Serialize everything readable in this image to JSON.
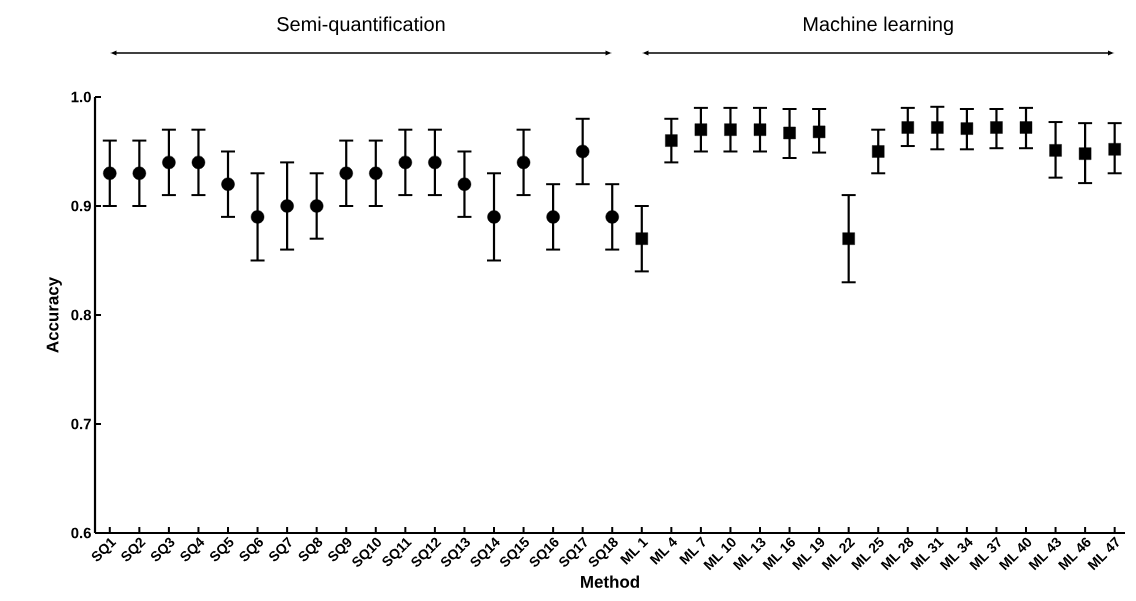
{
  "chart_data": {
    "type": "scatter",
    "xlabel": "Method",
    "ylabel": "Accuracy",
    "annotations": [
      "Semi-quantification",
      "Machine learning"
    ],
    "categories": [
      "SQ1",
      "SQ2",
      "SQ3",
      "SQ4",
      "SQ5",
      "SQ6",
      "SQ7",
      "SQ8",
      "SQ9",
      "SQ10",
      "SQ11",
      "SQ12",
      "SQ13",
      "SQ14",
      "SQ15",
      "SQ16",
      "SQ17",
      "SQ18",
      "ML 1",
      "ML 4",
      "ML 7",
      "ML 10",
      "ML 13",
      "ML 16",
      "ML 19",
      "ML 22",
      "ML 25",
      "ML 28",
      "ML 31",
      "ML 34",
      "ML 37",
      "ML 40",
      "ML 43",
      "ML 46",
      "ML 47"
    ],
    "series": [
      {
        "color": "#000000",
        "marker": "circle",
        "values": [
          0.93,
          0.93,
          0.94,
          0.94,
          0.92,
          0.89,
          0.9,
          0.9,
          0.93,
          0.93,
          0.94,
          0.94,
          0.92,
          0.89,
          0.94,
          0.89,
          0.95,
          0.89,
          null,
          null,
          null,
          null,
          null,
          null,
          null,
          null,
          null,
          null,
          null,
          null,
          null,
          null,
          null,
          null,
          null
        ],
        "errors": [
          0.03,
          0.03,
          0.03,
          0.03,
          0.03,
          [
            0.85,
            0.93
          ],
          [
            0.86,
            0.94
          ],
          [
            0.87,
            0.93
          ],
          0.03,
          0.03,
          0.03,
          0.03,
          0.03,
          [
            0.85,
            0.93
          ],
          0.03,
          0.03,
          0.03,
          0.03,
          null,
          null,
          null,
          null,
          null,
          null,
          null,
          null,
          null,
          null,
          null,
          null,
          null,
          null,
          null,
          null,
          null
        ]
      },
      {
        "color": "#000000",
        "marker": "square",
        "values": [
          null,
          null,
          null,
          null,
          null,
          null,
          null,
          null,
          null,
          null,
          null,
          null,
          null,
          null,
          null,
          null,
          null,
          null,
          0.87,
          0.96,
          0.97,
          0.97,
          0.97,
          0.967,
          0.968,
          0.87,
          0.95,
          0.972,
          0.972,
          0.971,
          0.972,
          0.972,
          0.951,
          0.948,
          0.952
        ],
        "errors": [
          null,
          null,
          null,
          null,
          null,
          null,
          null,
          null,
          null,
          null,
          null,
          null,
          null,
          null,
          null,
          null,
          null,
          null,
          [
            0.84,
            0.9
          ],
          [
            0.94,
            0.98
          ],
          [
            0.95,
            0.99
          ],
          [
            0.95,
            0.99
          ],
          [
            0.95,
            0.99
          ],
          [
            0.944,
            0.989
          ],
          [
            0.949,
            0.989
          ],
          [
            0.83,
            0.91
          ],
          [
            0.93,
            0.97
          ],
          [
            0.955,
            0.99
          ],
          [
            0.952,
            0.991
          ],
          [
            0.952,
            0.989
          ],
          [
            0.953,
            0.989
          ],
          [
            0.953,
            0.99
          ],
          [
            0.926,
            0.977
          ],
          [
            0.921,
            0.976
          ],
          [
            0.93,
            0.976
          ]
        ]
      }
    ],
    "ylim": [
      0.6,
      1.0
    ],
    "yticks": [
      0.6,
      0.7,
      0.8,
      0.9,
      {
        "value": 1.0,
        "label": "1.0"
      }
    ],
    "grid": false
  }
}
